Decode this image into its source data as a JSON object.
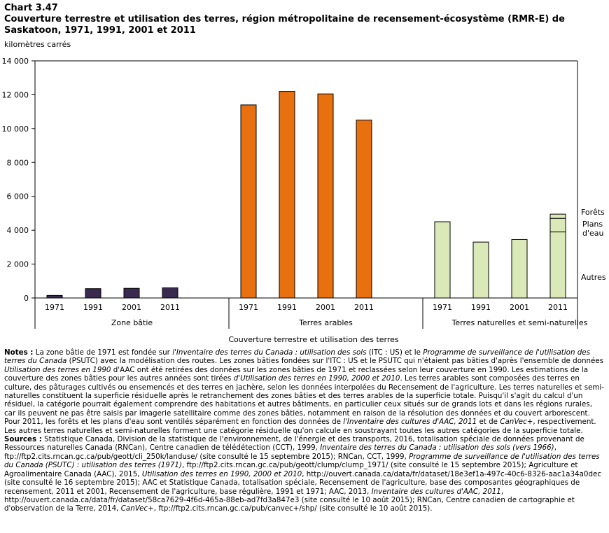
{
  "header": {
    "chart_number": "Chart 3.47",
    "title": "Couverture terrestre et utilisation des terres, région métropolitaine de recensement-écosystème (RMR-E) de Saskatoon, 1971, 1991, 2001 et 2011",
    "unit": "kilomètres carrés"
  },
  "colors": {
    "zone_batie": "#3b2a4f",
    "terres_arables": "#e8700e",
    "terres_naturelles": "#dbe8b8",
    "bar_stroke": "#000000"
  },
  "chart_data": {
    "type": "bar",
    "title": "Couverture terrestre et utilisation des terres, région métropolitaine de recensement-écosystème (RMR-E) de Saskatoon, 1971, 1991, 2001 et 2011",
    "ylabel": "kilomètres carrés",
    "xlabel": "Couverture terrestre et utilisation des terres",
    "ylim": [
      0,
      14000
    ],
    "yticks": [
      0,
      2000,
      4000,
      6000,
      8000,
      10000,
      12000,
      14000
    ],
    "ytick_labels": [
      "0",
      "2 000",
      "4 000",
      "6 000",
      "8 000",
      "10 000",
      "12 000",
      "14 000"
    ],
    "years": [
      "1971",
      "1991",
      "2001",
      "2011"
    ],
    "groups": [
      {
        "name": "Zone bâtie",
        "values": [
          150,
          550,
          570,
          600
        ]
      },
      {
        "name": "Terres arables",
        "values": [
          11400,
          12200,
          12050,
          10500
        ]
      },
      {
        "name": "Terres naturelles et semi-naturelles",
        "values": [
          4500,
          3300,
          3450,
          4950
        ]
      }
    ],
    "stack_2011_naturelles": [
      {
        "name": "Autres",
        "value": 3900
      },
      {
        "name": "Plans d'eau",
        "value": 800
      },
      {
        "name": "Forêts",
        "value": 250
      }
    ],
    "annotations": {
      "forets": "Forêts",
      "plans1": "Plans",
      "plans2": "d'eau",
      "autres": "Autres"
    },
    "grid": false
  },
  "notes": {
    "label": "Notes :",
    "p1": "La zone bâtie de 1971 est fondée sur ",
    "i1": "l'Inventaire des terres du Canada : utilisation des sols",
    "p2": " (ITC : US) et le ",
    "i2": "Programme de surveillance de l'utilisation des terres du Canada",
    "p3": " (PSUTC) avec la modélisation des routes. Les zones bâties fondées sur l'ITC : US et le PSUTC qui n'étaient pas bâties d'après l'ensemble de données ",
    "i3": "Utilisation des terres en 1990",
    "p4": " d'AAC ont été retirées des données sur les zones bâties de 1971 et reclassées selon leur couverture en 1990. Les estimations de la couverture des zones bâties pour les autres années sont tirées ",
    "i4": "d'Utilisation des terres en 1990, 2000 et 2010",
    "p5": ". Les terres arables sont composées des terres en culture, des pâturages cultivés ou ensemencés et des terres en jachère, selon les données interpolées du Recensement de l'agriculture. Les terres naturelles et semi-naturelles constituent la superficie résiduelle après le retranchement des zones bâties et des terres arables de la superficie totale. Puisqu'il s'agit du calcul d'un résiduel, la catégorie pourrait également comprendre des habitations et autres bâtiments, en particulier ceux situés sur de grands lots et dans les régions rurales, car ils peuvent ne pas être saisis par imagerie satellitaire comme des zones bâties, notamment en raison de la résolution des données et du couvert arborescent. Pour 2011, les forêts et les plans d'eau sont ventilés séparément en fonction des données de ",
    "i5": "l'Inventaire des cultures d'AAC, 2011",
    "p6": " et de ",
    "i6": "CanVec+",
    "p7": ", respectivement. Les autres terres naturelles et semi-naturelles forment une catégorie résiduelle qu'on calcule en soustrayant toutes les autres catégories de la superficie totale."
  },
  "sources": {
    "label": "Sources :",
    "s1": " Statistique Canada, Division de la statistique de l'environnement, de l'énergie et des transports, 2016, totalisation spéciale de données provenant de Ressources naturelles Canada (RNCan), Centre canadien de télédétection (CCT), 1999, ",
    "i1": "Inventaire des terres du Canada : utilisation des sols (vers 1966)",
    "s2": ", ftp://ftp2.cits.rncan.gc.ca/pub/geott/cli_250k/landuse/ (site consulté le 15 septembre 2015); RNCan, CCT, 1999, ",
    "i2": "Programme de surveillance de l'utilisation des terres du Canada (PSUTC) : utilisation des terres (1971)",
    "s3": ", ftp://ftp2.cits.rncan.gc.ca/pub/geott/clump/clump_1971/ (site consulté le 15 septembre 2015); Agriculture et Agroalimentaire Canada (AAC), 2015, ",
    "i3": "Utilisation des terres en 1990, 2000 et 2010",
    "s4": ", http://ouvert.canada.ca/data/fr/dataset/18e3ef1a-497c-40c6-8326-aac1a34a0dec (site consulté le 16 septembre 2015); AAC et Statistique Canada, totalisation spéciale, Recensement de l'agriculture, base des composantes géographiques de recensement, 2011 et 2001, Recensement de l'agriculture, base régulière, 1991 et 1971; AAC, 2013, ",
    "i4": "Inventaire des cultures d'AAC, 2011",
    "s5": ", http://ouvert.canada.ca/data/fr/dataset/58ca7629-4f6d-465a-88eb-ad7fd3a847e3 (site consulté le 10 août 2015); RNCan, Centre canadien de cartographie et d'observation de la Terre, 2014, ",
    "i5": "CanVec+",
    "s6": ", ftp://ftp2.cits.rncan.gc.ca/pub/canvec+/shp/ (site consulté le 10 août 2015)."
  }
}
